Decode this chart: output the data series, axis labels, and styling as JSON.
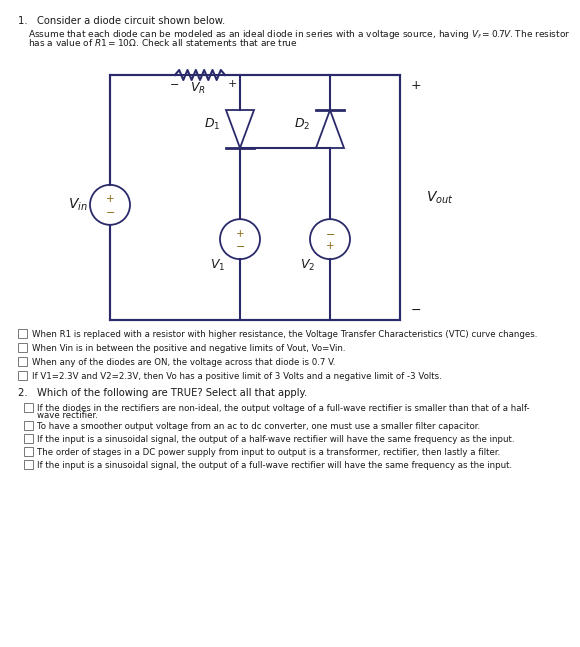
{
  "bg_color": "#ffffff",
  "text_color": "#1a1a1a",
  "line_color": "#2a2a6a",
  "title_q1": "1.   Consider a diode circuit shown below.",
  "para_line1": "Assume that each diode can be modeled as an ideal diode in series with a voltage source, having $V_f = 0.7V$. The resistor",
  "para_line2": "has a value of $R1 = 10\\Omega$. Check all statements that are true",
  "checkboxes_q1": [
    "When R1 is replaced with a resistor with higher resistance, the Voltage Transfer Characteristics (VTC) curve changes.",
    "When Vin is in between the positive and negative limits of Vout, Vo=Vin.",
    "When any of the diodes are ON, the voltage across that diode is 0.7 V.",
    "If V1=2.3V and V2=2.3V, then Vo has a positive limit of 3 Volts and a negative limit of -3 Volts."
  ],
  "title_q2": "2.   Which of the following are TRUE? Select all that apply.",
  "checkboxes_q2_line1": [
    "If the diodes in the rectifiers are non-ideal, the output voltage of a full-wave rectifier is smaller than that of a half-",
    "To have a smoother output voltage from an ac to dc converter, one must use a smaller filter capacitor.",
    "If the input is a sinusoidal signal, the output of a half-wave rectifier will have the same frequency as the input.",
    "The order of stages in a DC power supply from input to output is a transformer, rectifier, then lastly a filter.",
    "If the input is a sinusoidal signal, the output of a full-wave rectifier will have the same frequency as the input."
  ],
  "checkboxes_q2_line2": [
    "wave rectifier.",
    "",
    "",
    "",
    ""
  ]
}
